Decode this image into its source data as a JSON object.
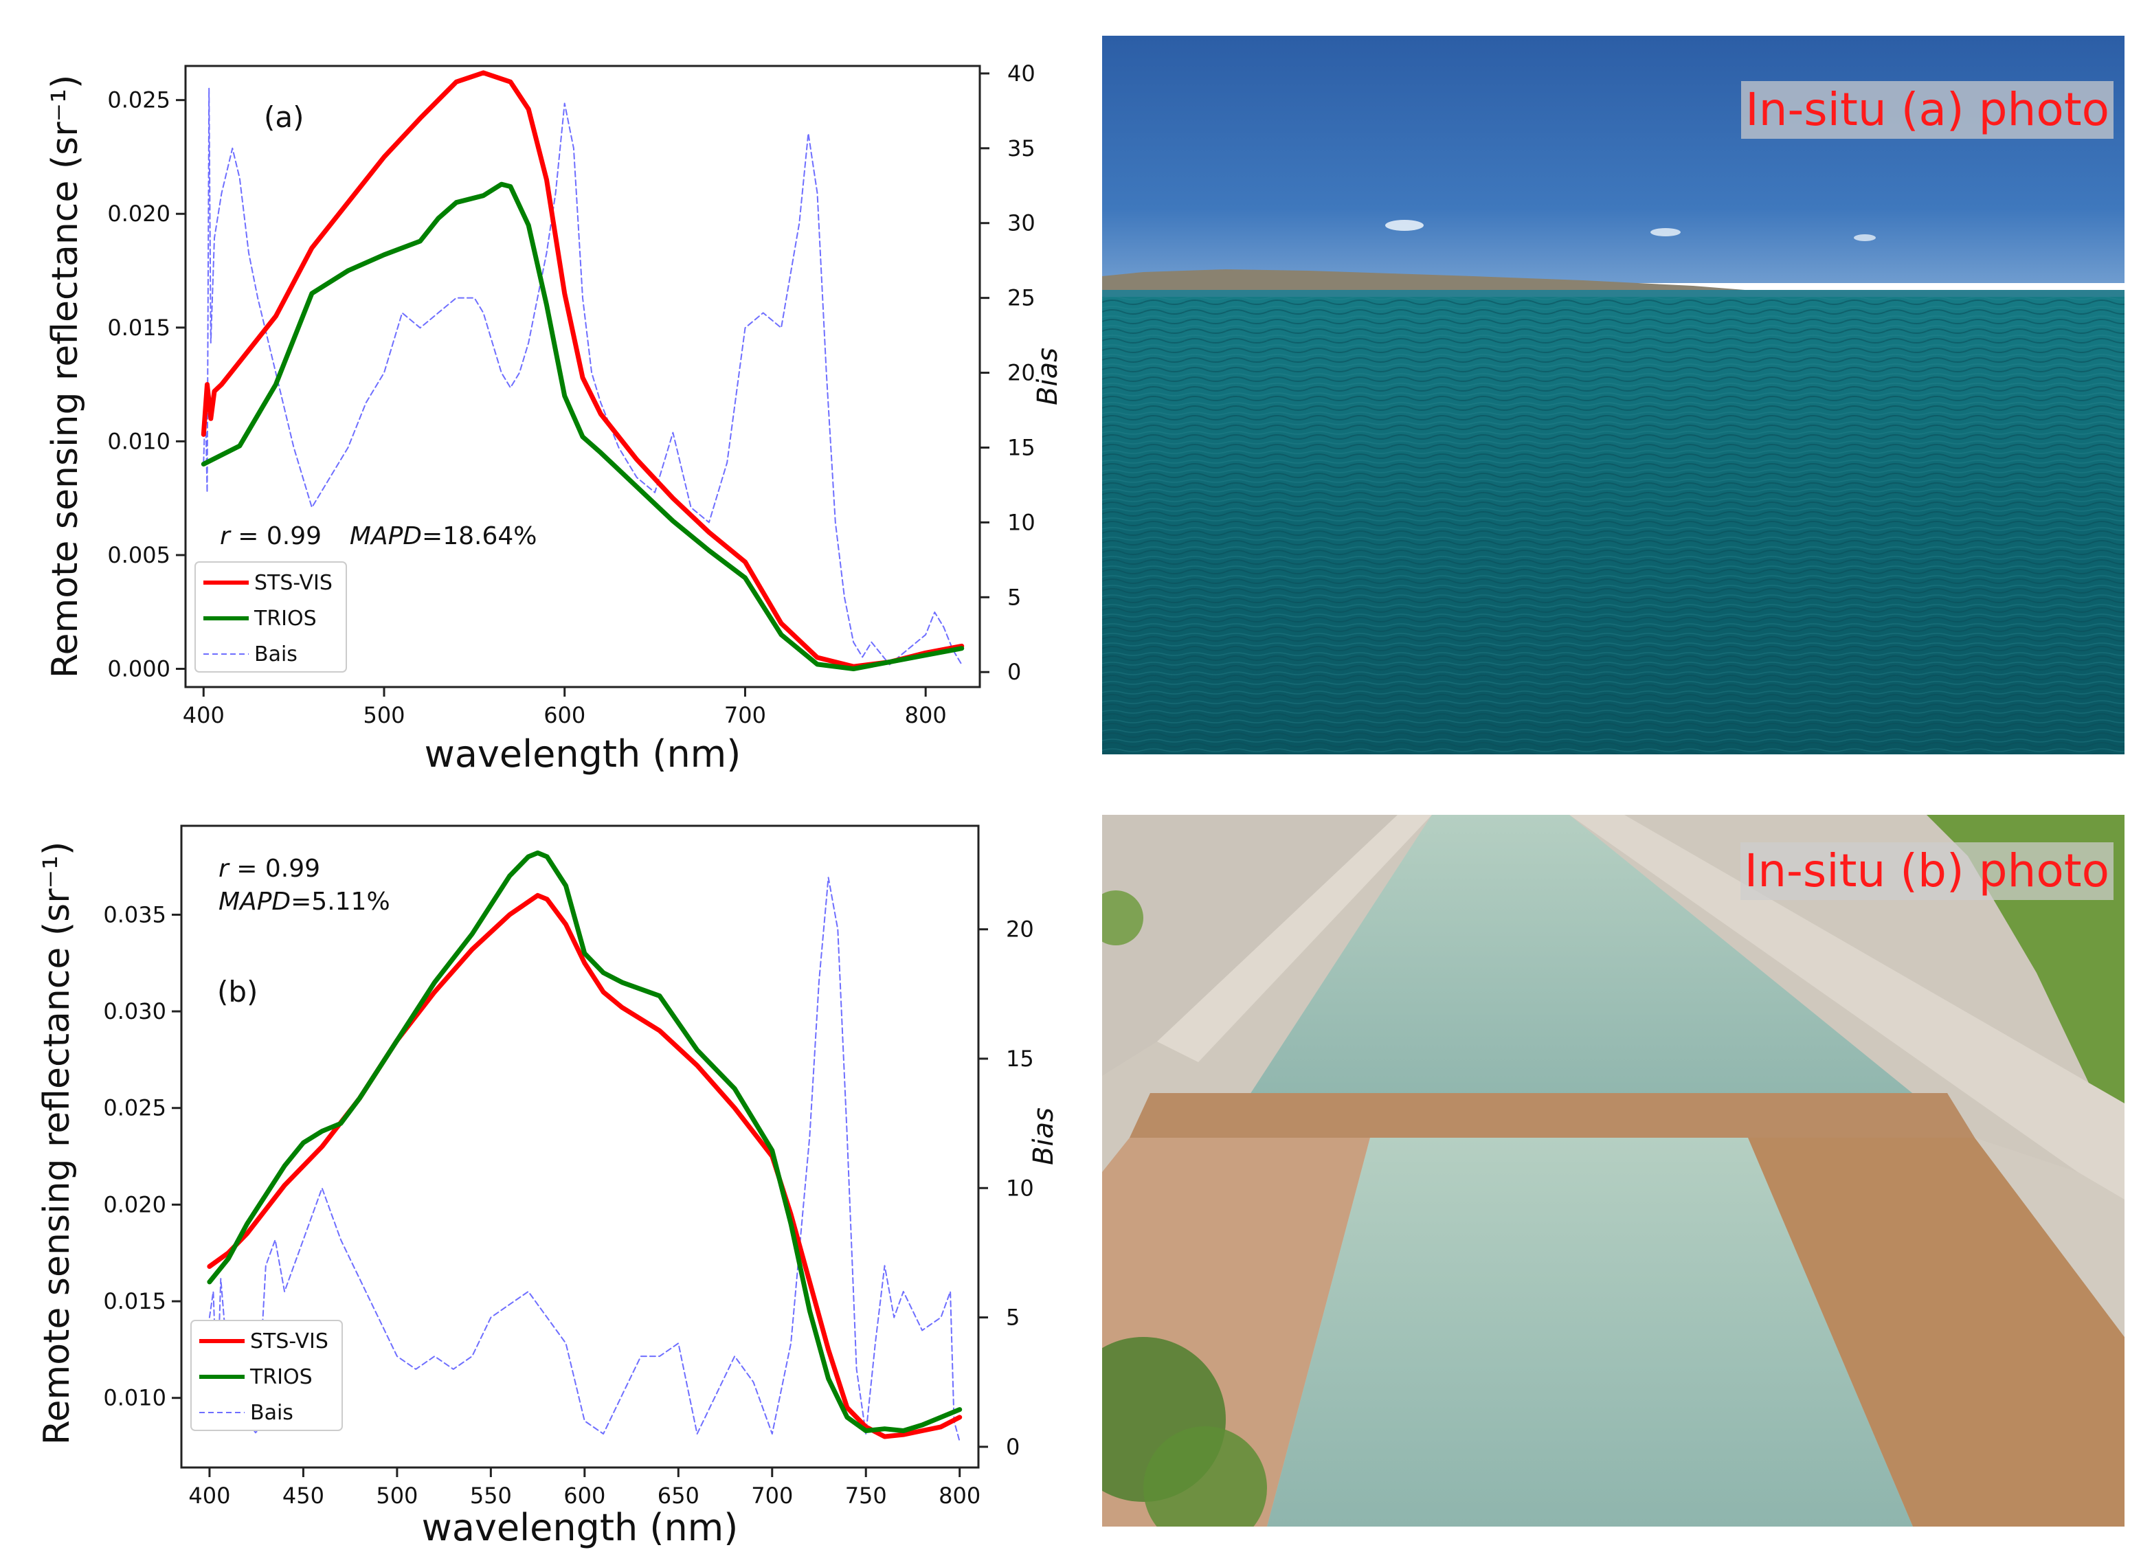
{
  "chart_data": [
    {
      "id": "a",
      "type": "line",
      "panel_label": "(a)",
      "xlabel": "wavelength (nm)",
      "ylabel": "Remote sensing reflectance (sr⁻¹)",
      "y2label": "Bias",
      "xlim": [
        390,
        830
      ],
      "ylim": [
        -0.0008,
        0.0265
      ],
      "y2lim": [
        -1,
        40.5
      ],
      "x_ticks": [
        "400",
        "500",
        "600",
        "700",
        "800"
      ],
      "y_ticks": [
        "0.000",
        "0.005",
        "0.010",
        "0.015",
        "0.020",
        "0.025"
      ],
      "y2_ticks": [
        "0",
        "5",
        "10",
        "15",
        "20",
        "25",
        "30",
        "35",
        "40"
      ],
      "annotation": "r = 0.99  MAPD=18.64%",
      "annotation_parts": {
        "r": "r",
        "r_value": " = 0.99  ",
        "mapd": "MAPD",
        "mapd_value": "=18.64%"
      },
      "legend_loc": "lower-left",
      "series": [
        {
          "name": "STS-VIS",
          "color": "#ff0000",
          "style": "solid",
          "axis": "left",
          "x": [
            400,
            402,
            404,
            406,
            410,
            420,
            440,
            460,
            480,
            500,
            520,
            540,
            555,
            570,
            580,
            590,
            600,
            610,
            620,
            640,
            660,
            680,
            700,
            720,
            740,
            760,
            780,
            800,
            820
          ],
          "y": [
            0.0103,
            0.0125,
            0.011,
            0.0122,
            0.0125,
            0.0135,
            0.0155,
            0.0185,
            0.0205,
            0.0225,
            0.0242,
            0.0258,
            0.0262,
            0.0258,
            0.0246,
            0.0215,
            0.0165,
            0.0128,
            0.0112,
            0.0092,
            0.0075,
            0.006,
            0.0047,
            0.002,
            0.0005,
            0.0001,
            0.0003,
            0.0007,
            0.001
          ]
        },
        {
          "name": "TRIOS",
          "color": "#008000",
          "style": "solid",
          "axis": "left",
          "x": [
            400,
            410,
            420,
            440,
            460,
            480,
            500,
            520,
            530,
            540,
            555,
            565,
            570,
            580,
            590,
            600,
            610,
            620,
            640,
            660,
            680,
            700,
            720,
            740,
            760,
            780,
            800,
            820
          ],
          "y": [
            0.009,
            0.0094,
            0.0098,
            0.0125,
            0.0165,
            0.0175,
            0.0182,
            0.0188,
            0.0198,
            0.0205,
            0.0208,
            0.0213,
            0.0212,
            0.0195,
            0.016,
            0.012,
            0.0102,
            0.0095,
            0.008,
            0.0065,
            0.0052,
            0.004,
            0.0015,
            0.0002,
            0.0,
            0.0003,
            0.0006,
            0.0009
          ]
        },
        {
          "name": "Bais",
          "color": "#6e6eff",
          "style": "dashed",
          "axis": "right",
          "x": [
            400,
            401,
            402,
            403,
            404,
            406,
            410,
            416,
            420,
            425,
            430,
            440,
            450,
            460,
            470,
            480,
            490,
            500,
            505,
            510,
            520,
            530,
            540,
            550,
            555,
            560,
            565,
            570,
            575,
            580,
            585,
            590,
            595,
            600,
            605,
            610,
            615,
            620,
            630,
            640,
            650,
            660,
            670,
            680,
            690,
            700,
            710,
            720,
            730,
            735,
            740,
            745,
            750,
            755,
            760,
            765,
            770,
            780,
            790,
            800,
            805,
            810,
            815,
            820
          ],
          "y": [
            14,
            18,
            12,
            39,
            22,
            29,
            32,
            35,
            33,
            28,
            25,
            20,
            15,
            11,
            13,
            15,
            18,
            20,
            22,
            24,
            23,
            24,
            25,
            25,
            24,
            22,
            20,
            19,
            20,
            22,
            25,
            28,
            32,
            38,
            35,
            25,
            20,
            18,
            15,
            13,
            12,
            16,
            11,
            10,
            14,
            23,
            24,
            23,
            30,
            36,
            32,
            20,
            10,
            5,
            2,
            1,
            2,
            0.5,
            1.5,
            2.5,
            4,
            3,
            1.5,
            0.5
          ]
        }
      ]
    },
    {
      "id": "b",
      "type": "line",
      "panel_label": "(b)",
      "xlabel": "wavelength (nm)",
      "ylabel": "Remote sensing reflectance (sr⁻¹)",
      "y2label": "Bias",
      "xlim": [
        385,
        810
      ],
      "ylim": [
        0.0064,
        0.0396
      ],
      "y2lim": [
        -0.8,
        24
      ],
      "x_ticks": [
        "400",
        "450",
        "500",
        "550",
        "600",
        "650",
        "700",
        "750",
        "800"
      ],
      "y_ticks": [
        "0.010",
        "0.015",
        "0.020",
        "0.025",
        "0.030",
        "0.035"
      ],
      "y2_ticks": [
        "0",
        "5",
        "10",
        "15",
        "20"
      ],
      "annotation": "r = 0.99\nMAPD=5.11%",
      "annotation_parts": {
        "r": "r",
        "r_value": " = 0.99",
        "mapd": "MAPD",
        "mapd_value": "=5.11%"
      },
      "legend_loc": "lower-left",
      "series": [
        {
          "name": "STS-VIS",
          "color": "#ff0000",
          "style": "solid",
          "axis": "left",
          "x": [
            400,
            410,
            420,
            440,
            460,
            480,
            500,
            520,
            540,
            560,
            575,
            580,
            590,
            600,
            610,
            620,
            640,
            660,
            680,
            700,
            710,
            720,
            730,
            740,
            750,
            760,
            770,
            780,
            790,
            800
          ],
          "y": [
            0.0168,
            0.0175,
            0.0185,
            0.021,
            0.023,
            0.0255,
            0.0285,
            0.031,
            0.0332,
            0.035,
            0.036,
            0.0358,
            0.0345,
            0.0325,
            0.031,
            0.0302,
            0.029,
            0.0272,
            0.025,
            0.0225,
            0.0195,
            0.016,
            0.0125,
            0.0095,
            0.0085,
            0.008,
            0.0081,
            0.0083,
            0.0085,
            0.009
          ]
        },
        {
          "name": "TRIOS",
          "color": "#008000",
          "style": "solid",
          "axis": "left",
          "x": [
            400,
            410,
            420,
            440,
            450,
            460,
            470,
            480,
            500,
            520,
            540,
            560,
            570,
            575,
            580,
            590,
            600,
            610,
            620,
            640,
            660,
            680,
            700,
            710,
            720,
            730,
            740,
            750,
            760,
            770,
            780,
            790,
            800
          ],
          "y": [
            0.016,
            0.0172,
            0.019,
            0.022,
            0.0232,
            0.0238,
            0.0242,
            0.0255,
            0.0285,
            0.0315,
            0.034,
            0.037,
            0.038,
            0.0382,
            0.038,
            0.0365,
            0.033,
            0.032,
            0.0315,
            0.0308,
            0.028,
            0.026,
            0.0228,
            0.019,
            0.0145,
            0.011,
            0.009,
            0.0083,
            0.0084,
            0.0083,
            0.0086,
            0.009,
            0.0094
          ]
        },
        {
          "name": "Bais",
          "color": "#6e6eff",
          "style": "dashed",
          "axis": "right",
          "x": [
            400,
            402,
            404,
            406,
            410,
            415,
            420,
            425,
            430,
            435,
            440,
            450,
            460,
            470,
            480,
            490,
            500,
            510,
            520,
            530,
            540,
            550,
            560,
            570,
            580,
            590,
            600,
            610,
            620,
            630,
            640,
            650,
            660,
            670,
            680,
            690,
            700,
            710,
            720,
            725,
            730,
            735,
            740,
            745,
            750,
            755,
            760,
            765,
            770,
            780,
            790,
            795,
            797,
            800
          ],
          "y": [
            5,
            6,
            2,
            6.5,
            3,
            1.5,
            1,
            0.5,
            7,
            8,
            6,
            8,
            10,
            8,
            6.5,
            5,
            3.5,
            3,
            3.5,
            3,
            3.5,
            5,
            5.5,
            6,
            5,
            4,
            1,
            0.5,
            2,
            3.5,
            3.5,
            4,
            0.5,
            2,
            3.5,
            2.5,
            0.5,
            4,
            12,
            18,
            22,
            20,
            12,
            3,
            0.5,
            4,
            7,
            5,
            6,
            4.5,
            5,
            6,
            1,
            0.2
          ]
        }
      ]
    }
  ],
  "photos": [
    {
      "label": "In-situ (a) photo"
    },
    {
      "label": "In-situ (b) photo"
    }
  ]
}
